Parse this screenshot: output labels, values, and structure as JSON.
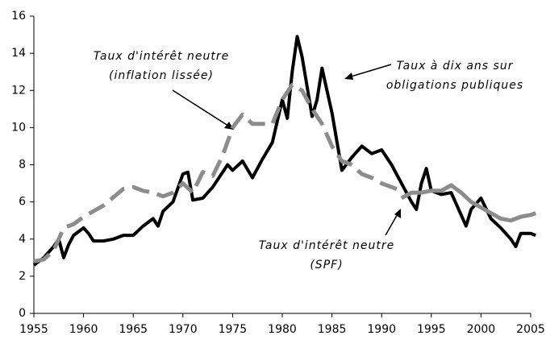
{
  "chart_data": {
    "type": "line",
    "xlim": [
      1955,
      2005
    ],
    "xticks": [
      1955,
      1960,
      1965,
      1970,
      1975,
      1980,
      1985,
      1990,
      1995,
      2000,
      2005
    ],
    "ylim": [
      0,
      16
    ],
    "yticks": [
      0,
      2,
      4,
      6,
      8,
      10,
      12,
      14,
      16
    ],
    "series": [
      {
        "color": "#000000",
        "style": "solid",
        "width": 4,
        "x": [
          1955,
          1956,
          1957,
          1957.5,
          1958,
          1958.5,
          1959,
          1960,
          1960.5,
          1961,
          1962,
          1963,
          1964,
          1965,
          1966,
          1967,
          1967.5,
          1968,
          1969,
          1970,
          1970.5,
          1971,
          1972,
          1973,
          1974,
          1974.5,
          1975,
          1976,
          1977,
          1978,
          1979,
          1980,
          1980.5,
          1981,
          1981.5,
          1982,
          1983,
          1983.5,
          1984,
          1984.5,
          1985,
          1986,
          1987,
          1988,
          1989,
          1990,
          1991,
          1992,
          1993,
          1993.5,
          1994,
          1994.5,
          1995,
          1996,
          1997,
          1998,
          1998.5,
          1999,
          2000,
          2001,
          2002,
          2003,
          2003.5,
          2004,
          2005,
          2005.5
        ],
        "values": [
          2.6,
          3.0,
          3.6,
          4.0,
          3.0,
          3.7,
          4.2,
          4.6,
          4.3,
          3.9,
          3.9,
          4.0,
          4.2,
          4.2,
          4.7,
          5.1,
          4.7,
          5.5,
          6.0,
          7.5,
          7.6,
          6.1,
          6.2,
          6.8,
          7.6,
          8.0,
          7.7,
          8.2,
          7.3,
          8.3,
          9.2,
          11.5,
          10.5,
          13.0,
          14.9,
          13.8,
          10.6,
          11.5,
          13.2,
          12.0,
          10.8,
          7.7,
          8.4,
          9.0,
          8.6,
          8.8,
          8.0,
          7.0,
          6.0,
          5.6,
          7.0,
          7.8,
          6.6,
          6.4,
          6.5,
          5.3,
          4.7,
          5.6,
          6.2,
          5.1,
          4.6,
          4.0,
          3.6,
          4.3,
          4.3,
          4.2
        ]
      },
      {
        "color": "#8c8c8c",
        "style": "dashed",
        "width": 5,
        "x": [
          1955,
          1956,
          1957,
          1958,
          1959,
          1960,
          1962,
          1964,
          1965,
          1966,
          1967,
          1968,
          1969,
          1970,
          1971,
          1972,
          1973,
          1974,
          1975,
          1976,
          1977,
          1978,
          1979,
          1980,
          1981,
          1982,
          1983,
          1984,
          1985,
          1986,
          1987,
          1988,
          1989,
          1990,
          1991,
          1992
        ],
        "values": [
          2.8,
          2.9,
          3.4,
          4.6,
          4.8,
          5.2,
          5.8,
          6.7,
          6.8,
          6.6,
          6.5,
          6.3,
          6.5,
          7.0,
          6.5,
          7.6,
          7.4,
          8.5,
          10.0,
          10.7,
          10.2,
          10.2,
          10.2,
          11.5,
          12.3,
          12.0,
          11.0,
          10.2,
          9.0,
          8.2,
          8.0,
          7.5,
          7.3,
          7.0,
          6.8,
          6.6
        ]
      },
      {
        "color": "#8c8c8c",
        "style": "solid",
        "width": 5,
        "x": [
          1992,
          1993,
          1994,
          1995,
          1996,
          1997,
          1998,
          1999,
          2000,
          2001,
          2002,
          2003,
          2004,
          2005,
          2005.5
        ],
        "values": [
          6.2,
          6.5,
          6.5,
          6.6,
          6.6,
          6.9,
          6.5,
          6.0,
          5.7,
          5.4,
          5.1,
          5.0,
          5.2,
          5.3,
          5.4
        ]
      }
    ],
    "annotations": [
      {
        "lines": [
          "Taux d'intérêt neutre",
          "(inflation lissée)"
        ]
      },
      {
        "lines": [
          "Taux à dix ans sur",
          "obligations publiques"
        ]
      },
      {
        "lines": [
          "Taux d'intérêt neutre",
          "(SPF)"
        ]
      }
    ]
  }
}
